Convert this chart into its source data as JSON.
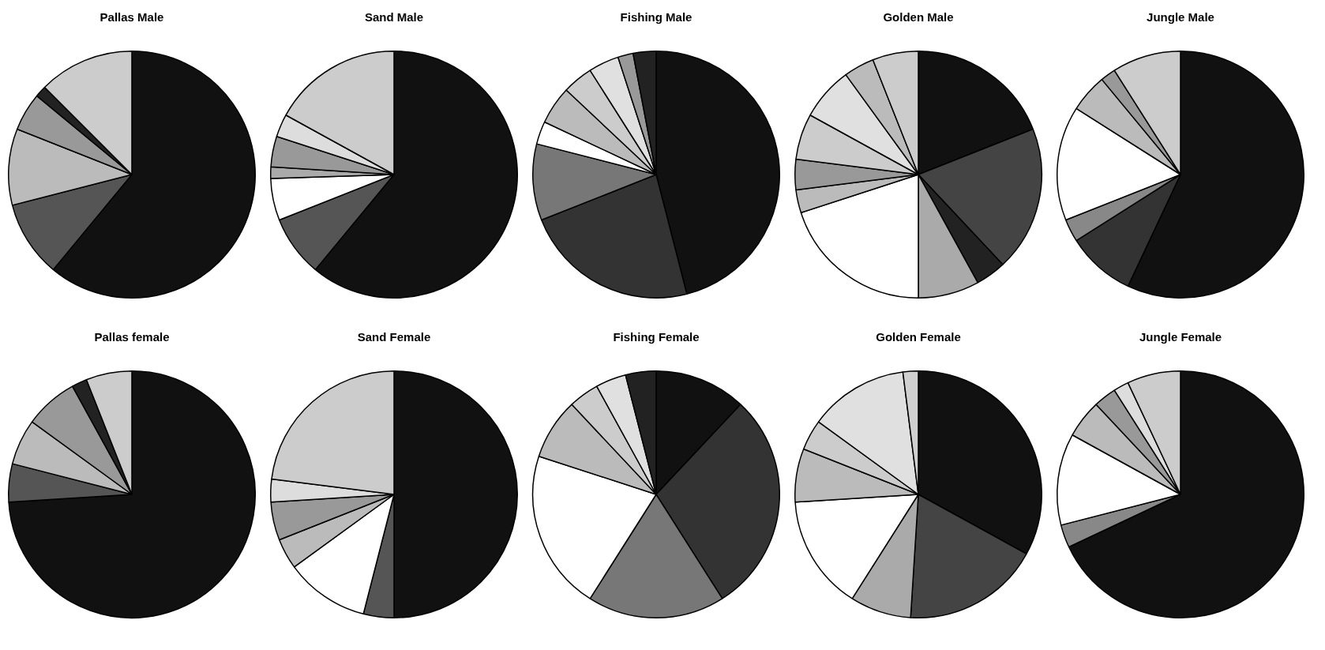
{
  "chart_data": [
    {
      "type": "pie",
      "title": "Pallas Male",
      "categories": [
        null,
        null,
        null,
        null,
        null,
        null
      ],
      "values": [
        61,
        10,
        10,
        5,
        1.5,
        12.5
      ],
      "colors": [
        "#111111",
        "#555555",
        "#bbbbbb",
        "#999999",
        "#222222",
        "#cccccc"
      ]
    },
    {
      "type": "pie",
      "title": "Sand Male",
      "categories": [
        null,
        null,
        null,
        null,
        null,
        null,
        null
      ],
      "values": [
        61,
        8,
        5.5,
        1.5,
        4,
        3,
        17
      ],
      "colors": [
        "#111111",
        "#555555",
        "#ffffff",
        "#aaaaaa",
        "#999999",
        "#dddddd",
        "#cccccc"
      ]
    },
    {
      "type": "pie",
      "title": "Fishing Male",
      "categories": [
        null,
        null,
        null,
        null,
        null,
        null,
        null,
        null,
        null
      ],
      "values": [
        46,
        23,
        10,
        3,
        5,
        4,
        4,
        2,
        3
      ],
      "colors": [
        "#111111",
        "#333333",
        "#777777",
        "#ffffff",
        "#bbbbbb",
        "#cccccc",
        "#e0e0e0",
        "#999999",
        "#222222"
      ]
    },
    {
      "type": "pie",
      "title": "Golden Male",
      "categories": [
        null,
        null,
        null,
        null,
        null,
        null,
        null,
        null,
        null,
        null,
        null
      ],
      "values": [
        19,
        19,
        4,
        8,
        20,
        3,
        4,
        6,
        7,
        4,
        6
      ],
      "colors": [
        "#111111",
        "#444444",
        "#222222",
        "#aaaaaa",
        "#ffffff",
        "#bbbbbb",
        "#999999",
        "#cccccc",
        "#e0e0e0",
        "#bbbbbb",
        "#cccccc"
      ]
    },
    {
      "type": "pie",
      "title": "Jungle Male",
      "categories": [
        null,
        null,
        null,
        null,
        null,
        null,
        null
      ],
      "values": [
        57,
        9,
        3,
        15,
        5,
        2,
        9
      ],
      "colors": [
        "#111111",
        "#333333",
        "#888888",
        "#ffffff",
        "#bbbbbb",
        "#999999",
        "#cccccc"
      ]
    },
    {
      "type": "pie",
      "title": "Pallas female",
      "categories": [
        null,
        null,
        null,
        null,
        null,
        null
      ],
      "values": [
        74,
        5,
        6,
        7,
        2,
        6
      ],
      "colors": [
        "#111111",
        "#555555",
        "#bbbbbb",
        "#999999",
        "#222222",
        "#cccccc"
      ]
    },
    {
      "type": "pie",
      "title": "Sand Female",
      "categories": [
        null,
        null,
        null,
        null,
        null,
        null,
        null
      ],
      "values": [
        50,
        4,
        11,
        4,
        5,
        3,
        23
      ],
      "colors": [
        "#111111",
        "#555555",
        "#ffffff",
        "#bbbbbb",
        "#999999",
        "#dddddd",
        "#cccccc"
      ]
    },
    {
      "type": "pie",
      "title": "Fishing Female",
      "categories": [
        null,
        null,
        null,
        null,
        null,
        null,
        null,
        null
      ],
      "values": [
        12,
        29,
        18,
        21,
        8,
        4,
        4,
        4
      ],
      "colors": [
        "#111111",
        "#333333",
        "#777777",
        "#ffffff",
        "#bbbbbb",
        "#cccccc",
        "#e0e0e0",
        "#222222"
      ]
    },
    {
      "type": "pie",
      "title": "Golden Female",
      "categories": [
        null,
        null,
        null,
        null,
        null,
        null,
        null,
        null
      ],
      "values": [
        33,
        18,
        8,
        15,
        7,
        4,
        13,
        2
      ],
      "colors": [
        "#111111",
        "#444444",
        "#aaaaaa",
        "#ffffff",
        "#bbbbbb",
        "#cccccc",
        "#e0e0e0",
        "#d0d0d0"
      ]
    },
    {
      "type": "pie",
      "title": "Jungle Female",
      "categories": [
        null,
        null,
        null,
        null,
        null,
        null,
        null
      ],
      "values": [
        68,
        3,
        12,
        5,
        3,
        2,
        7
      ],
      "colors": [
        "#111111",
        "#888888",
        "#ffffff",
        "#bbbbbb",
        "#999999",
        "#dddddd",
        "#cccccc"
      ]
    }
  ]
}
